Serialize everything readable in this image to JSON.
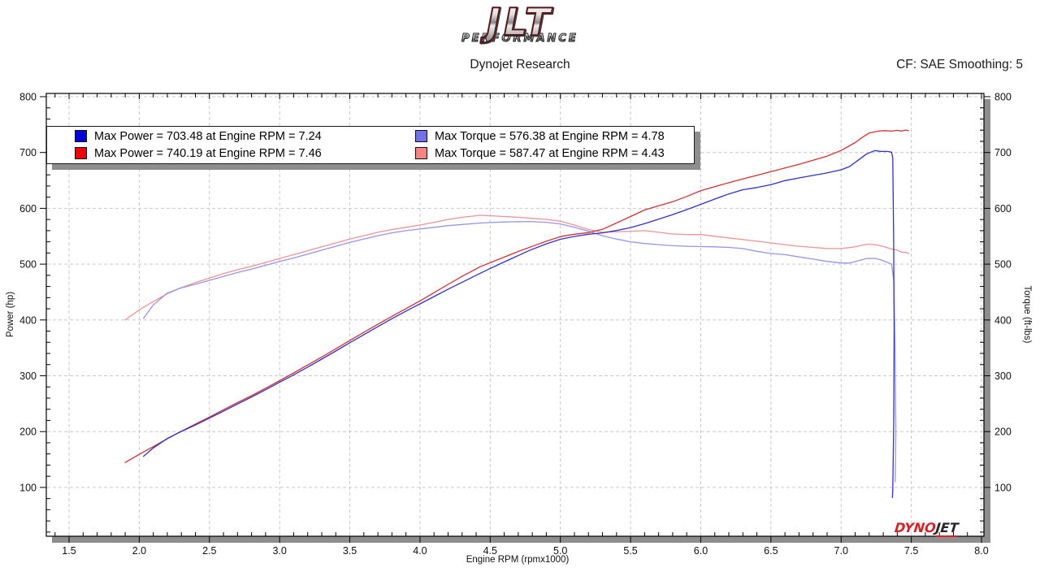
{
  "header": {
    "logo_main": "JLT",
    "logo_sub": "PERFORMANCE",
    "subtitle": "Dynojet Research",
    "smoothing_label": "CF: SAE Smoothing: 5"
  },
  "legend": {
    "entries": [
      {
        "label": "Max Power = 703.48 at Engine RPM = 7.24",
        "color": "#0202dd"
      },
      {
        "label": "Max Torque = 576.38 at Engine RPM = 4.78",
        "color": "#7272e6"
      },
      {
        "label": "Max Power = 740.19 at Engine RPM = 7.46",
        "color": "#ee0404"
      },
      {
        "label": "Max Torque = 587.47 at Engine RPM = 4.43",
        "color": "#f28484"
      }
    ]
  },
  "watermark": {
    "dyno": "DYNO",
    "jet": "JET"
  },
  "chart_data": {
    "type": "line",
    "xlabel": "Engine RPM (rpmx1000)",
    "ylabel_left": "Power (hp)",
    "ylabel_right": "Torque (ft-lbs)",
    "xlim": [
      1.34,
      8.02
    ],
    "ylim": [
      13,
      806
    ],
    "x_ticks_major": [
      1.5,
      2.0,
      2.5,
      3.0,
      3.5,
      4.0,
      4.5,
      5.0,
      5.5,
      6.0,
      6.5,
      7.0,
      7.5,
      8.0
    ],
    "x_minor_step": 0.1,
    "y_ticks_major": [
      100,
      200,
      300,
      400,
      500,
      600,
      700,
      800
    ],
    "y_minor_step": 20,
    "grid": "dashed-major",
    "legend_position": "top-left",
    "annotations": {
      "max_power_run1": {
        "value": 703.48,
        "rpm": 7.24
      },
      "max_power_run2": {
        "value": 740.19,
        "rpm": 7.46
      },
      "max_torque_run1": {
        "value": 576.38,
        "rpm": 4.78
      },
      "max_torque_run2": {
        "value": 587.47,
        "rpm": 4.43
      }
    },
    "series": [
      {
        "name": "run2-torque",
        "color": "#ee9393",
        "width": 1.3,
        "points": [
          [
            1.9,
            400
          ],
          [
            2.0,
            418
          ],
          [
            2.1,
            433
          ],
          [
            2.2,
            447
          ],
          [
            2.3,
            458
          ],
          [
            2.4,
            467
          ],
          [
            2.5,
            475
          ],
          [
            2.6,
            483
          ],
          [
            2.7,
            490
          ],
          [
            2.8,
            496
          ],
          [
            2.9,
            503
          ],
          [
            3.0,
            510
          ],
          [
            3.1,
            517
          ],
          [
            3.2,
            524
          ],
          [
            3.3,
            531
          ],
          [
            3.4,
            538
          ],
          [
            3.5,
            545
          ],
          [
            3.6,
            551
          ],
          [
            3.7,
            557
          ],
          [
            3.8,
            562
          ],
          [
            3.9,
            566
          ],
          [
            4.0,
            570
          ],
          [
            4.1,
            575
          ],
          [
            4.2,
            580
          ],
          [
            4.3,
            584
          ],
          [
            4.43,
            587.5
          ],
          [
            4.55,
            586
          ],
          [
            4.7,
            584
          ],
          [
            4.8,
            582
          ],
          [
            4.9,
            580
          ],
          [
            5.0,
            577
          ],
          [
            5.1,
            570
          ],
          [
            5.2,
            562
          ],
          [
            5.3,
            557
          ],
          [
            5.4,
            558
          ],
          [
            5.5,
            559
          ],
          [
            5.6,
            560
          ],
          [
            5.7,
            557
          ],
          [
            5.8,
            554
          ],
          [
            5.9,
            553
          ],
          [
            6.0,
            553
          ],
          [
            6.1,
            550
          ],
          [
            6.2,
            547
          ],
          [
            6.3,
            544
          ],
          [
            6.4,
            541
          ],
          [
            6.5,
            538
          ],
          [
            6.6,
            535
          ],
          [
            6.7,
            532
          ],
          [
            6.8,
            530
          ],
          [
            6.9,
            528
          ],
          [
            7.0,
            528
          ],
          [
            7.1,
            531
          ],
          [
            7.15,
            534
          ],
          [
            7.2,
            536
          ],
          [
            7.26,
            534
          ],
          [
            7.31,
            531
          ],
          [
            7.36,
            527
          ],
          [
            7.4,
            525
          ],
          [
            7.43,
            521.5
          ],
          [
            7.46,
            521.1
          ],
          [
            7.48,
            519
          ]
        ]
      },
      {
        "name": "run1-torque",
        "color": "#9595ea",
        "width": 1.3,
        "points": [
          [
            2.03,
            403
          ],
          [
            2.1,
            427
          ],
          [
            2.2,
            448
          ],
          [
            2.28,
            456
          ],
          [
            2.4,
            464
          ],
          [
            2.5,
            471
          ],
          [
            2.6,
            478
          ],
          [
            2.7,
            485
          ],
          [
            2.8,
            491
          ],
          [
            2.9,
            498
          ],
          [
            3.0,
            505
          ],
          [
            3.1,
            511
          ],
          [
            3.2,
            518
          ],
          [
            3.3,
            525
          ],
          [
            3.4,
            532
          ],
          [
            3.5,
            539
          ],
          [
            3.6,
            545
          ],
          [
            3.7,
            551
          ],
          [
            3.8,
            556
          ],
          [
            3.9,
            560
          ],
          [
            4.0,
            563
          ],
          [
            4.1,
            566
          ],
          [
            4.2,
            569
          ],
          [
            4.3,
            571
          ],
          [
            4.4,
            573
          ],
          [
            4.5,
            574.5
          ],
          [
            4.6,
            575.5
          ],
          [
            4.78,
            576.4
          ],
          [
            4.9,
            575
          ],
          [
            5.0,
            572
          ],
          [
            5.1,
            566
          ],
          [
            5.2,
            559
          ],
          [
            5.3,
            551
          ],
          [
            5.4,
            545
          ],
          [
            5.5,
            540
          ],
          [
            5.6,
            537
          ],
          [
            5.7,
            535
          ],
          [
            5.8,
            533
          ],
          [
            5.9,
            532
          ],
          [
            6.0,
            531.5
          ],
          [
            6.1,
            531
          ],
          [
            6.2,
            530
          ],
          [
            6.3,
            528
          ],
          [
            6.4,
            523
          ],
          [
            6.5,
            519
          ],
          [
            6.6,
            517
          ],
          [
            6.7,
            513
          ],
          [
            6.8,
            509
          ],
          [
            6.9,
            505
          ],
          [
            7.0,
            502
          ],
          [
            7.06,
            502
          ],
          [
            7.12,
            506
          ],
          [
            7.18,
            510
          ],
          [
            7.24,
            510.3
          ],
          [
            7.28,
            508
          ],
          [
            7.33,
            503
          ],
          [
            7.36,
            500
          ],
          [
            7.375,
            470
          ],
          [
            7.385,
            330
          ],
          [
            7.39,
            200
          ],
          [
            7.385,
            110
          ]
        ]
      },
      {
        "name": "run2-power",
        "color": "#cd3232",
        "width": 1.3,
        "points": [
          [
            1.9,
            144.7
          ],
          [
            2.0,
            159.2
          ],
          [
            2.1,
            173.1
          ],
          [
            2.2,
            187.2
          ],
          [
            2.3,
            200.6
          ],
          [
            2.4,
            213.4
          ],
          [
            2.5,
            226.1
          ],
          [
            2.6,
            239.1
          ],
          [
            2.7,
            251.9
          ],
          [
            2.8,
            264.4
          ],
          [
            2.9,
            277.8
          ],
          [
            3.0,
            291.3
          ],
          [
            3.1,
            305.1
          ],
          [
            3.2,
            319.3
          ],
          [
            3.3,
            333.6
          ],
          [
            3.4,
            348.3
          ],
          [
            3.5,
            363.2
          ],
          [
            3.6,
            377.7
          ],
          [
            3.7,
            392.3
          ],
          [
            3.8,
            406.6
          ],
          [
            3.9,
            420.3
          ],
          [
            4.0,
            434.1
          ],
          [
            4.1,
            448.9
          ],
          [
            4.2,
            463.8
          ],
          [
            4.3,
            478.1
          ],
          [
            4.43,
            495.5
          ],
          [
            4.55,
            507.6
          ],
          [
            4.7,
            522.7
          ],
          [
            4.8,
            531.9
          ],
          [
            4.9,
            541.1
          ],
          [
            5.0,
            549.3
          ],
          [
            5.1,
            553.5
          ],
          [
            5.2,
            556.5
          ],
          [
            5.3,
            562.3
          ],
          [
            5.4,
            573.8
          ],
          [
            5.5,
            585.3
          ],
          [
            5.6,
            597.1
          ],
          [
            5.7,
            604.5
          ],
          [
            5.8,
            611.8
          ],
          [
            5.9,
            621.2
          ],
          [
            6.0,
            631.8
          ],
          [
            6.1,
            638.9
          ],
          [
            6.2,
            645.8
          ],
          [
            6.3,
            652.6
          ],
          [
            6.4,
            659.3
          ],
          [
            6.5,
            665.8
          ],
          [
            6.6,
            672.3
          ],
          [
            6.7,
            678.8
          ],
          [
            6.8,
            686.2
          ],
          [
            6.9,
            693.6
          ],
          [
            7.0,
            703.7
          ],
          [
            7.1,
            717.8
          ],
          [
            7.15,
            727.0
          ],
          [
            7.2,
            734.9
          ],
          [
            7.26,
            738.2
          ],
          [
            7.31,
            739.1
          ],
          [
            7.36,
            738.3
          ],
          [
            7.4,
            739.7
          ],
          [
            7.43,
            738.4
          ],
          [
            7.46,
            740.2
          ],
          [
            7.48,
            739.2
          ]
        ]
      },
      {
        "name": "run1-power",
        "color": "#3030cd",
        "width": 1.3,
        "points": [
          [
            2.03,
            155.8
          ],
          [
            2.1,
            170.7
          ],
          [
            2.2,
            187.7
          ],
          [
            2.28,
            197.9
          ],
          [
            2.4,
            212.0
          ],
          [
            2.5,
            224.2
          ],
          [
            2.6,
            236.6
          ],
          [
            2.7,
            249.3
          ],
          [
            2.8,
            261.8
          ],
          [
            2.9,
            275.0
          ],
          [
            3.0,
            288.5
          ],
          [
            3.1,
            301.6
          ],
          [
            3.2,
            315.6
          ],
          [
            3.3,
            329.9
          ],
          [
            3.4,
            344.4
          ],
          [
            3.5,
            359.2
          ],
          [
            3.6,
            373.6
          ],
          [
            3.7,
            388.2
          ],
          [
            3.8,
            402.3
          ],
          [
            3.9,
            415.9
          ],
          [
            4.0,
            428.8
          ],
          [
            4.1,
            441.9
          ],
          [
            4.2,
            455.1
          ],
          [
            4.3,
            467.5
          ],
          [
            4.4,
            480.1
          ],
          [
            4.5,
            492.3
          ],
          [
            4.6,
            504.0
          ],
          [
            4.78,
            524.6
          ],
          [
            4.9,
            536.4
          ],
          [
            5.0,
            544.6
          ],
          [
            5.1,
            549.6
          ],
          [
            5.2,
            553.5
          ],
          [
            5.3,
            556.1
          ],
          [
            5.4,
            560.3
          ],
          [
            5.5,
            565.5
          ],
          [
            5.6,
            572.5
          ],
          [
            5.7,
            580.7
          ],
          [
            5.8,
            588.8
          ],
          [
            5.9,
            597.7
          ],
          [
            6.0,
            607.2
          ],
          [
            6.1,
            616.6
          ],
          [
            6.2,
            625.7
          ],
          [
            6.3,
            633.4
          ],
          [
            6.4,
            637.2
          ],
          [
            6.5,
            642.4
          ],
          [
            6.6,
            649.7
          ],
          [
            6.7,
            654.4
          ],
          [
            6.8,
            659.0
          ],
          [
            6.9,
            663.4
          ],
          [
            7.0,
            669.0
          ],
          [
            7.06,
            674.8
          ],
          [
            7.12,
            686.0
          ],
          [
            7.18,
            697.1
          ],
          [
            7.24,
            703.5
          ],
          [
            7.28,
            702.0
          ],
          [
            7.33,
            701.9
          ],
          [
            7.36,
            700.6
          ],
          [
            7.368,
            690
          ],
          [
            7.374,
            540
          ],
          [
            7.378,
            380
          ],
          [
            7.375,
            220
          ],
          [
            7.368,
            95
          ],
          [
            7.365,
            82
          ]
        ]
      }
    ]
  }
}
